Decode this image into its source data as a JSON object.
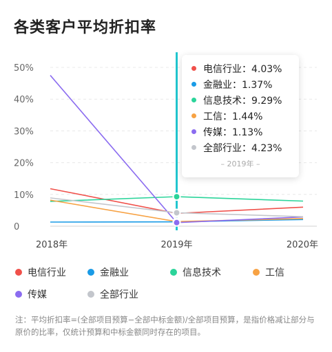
{
  "title": "各类客户平均折扣率",
  "chart_data": {
    "type": "line",
    "x": [
      "2018年",
      "2019年",
      "2020年"
    ],
    "ylim": [
      0,
      50
    ],
    "yticks": [
      "0",
      "10%",
      "20%",
      "30%",
      "40%",
      "50%"
    ],
    "ytick_values": [
      0,
      10,
      20,
      30,
      40,
      50
    ],
    "series": [
      {
        "name": "电信行业",
        "color": "#f0504a",
        "values": [
          11.8,
          4.03,
          6.0
        ]
      },
      {
        "name": "金融业",
        "color": "#1a9be6",
        "values": [
          1.3,
          1.37,
          2.1
        ]
      },
      {
        "name": "信息技术",
        "color": "#2bd49a",
        "values": [
          7.8,
          9.29,
          7.9
        ]
      },
      {
        "name": "工信",
        "color": "#f7a244",
        "values": [
          8.2,
          1.44,
          2.4
        ]
      },
      {
        "name": "传媒",
        "color": "#8b6cf0",
        "values": [
          47.5,
          1.13,
          2.9
        ]
      },
      {
        "name": "全部行业",
        "color": "#c3c6cc",
        "values": [
          8.9,
          4.23,
          3.0
        ]
      }
    ],
    "highlight_x": "2019年",
    "highlight_color": "#21c6cf",
    "grid": true
  },
  "tooltip": {
    "rows": [
      {
        "label": "电信行业：4.03%",
        "color": "#f0504a"
      },
      {
        "label": "金融业：1.37%",
        "color": "#1a9be6"
      },
      {
        "label": "信息技术：9.29%",
        "color": "#2bd49a"
      },
      {
        "label": "工信：1.44%",
        "color": "#f7a244"
      },
      {
        "label": "传媒：1.13%",
        "color": "#8b6cf0"
      },
      {
        "label": "全部行业：4.23%",
        "color": "#c3c6cc"
      }
    ],
    "footer": "– 2019年 –"
  },
  "legend": [
    {
      "label": "电信行业",
      "color": "#f0504a"
    },
    {
      "label": "金融业",
      "color": "#1a9be6"
    },
    {
      "label": "信息技术",
      "color": "#2bd49a"
    },
    {
      "label": "工信",
      "color": "#f7a244"
    },
    {
      "label": "传媒",
      "color": "#8b6cf0"
    },
    {
      "label": "全部行业",
      "color": "#c3c6cc"
    }
  ],
  "note": "注：平均折扣率=(全部项目预算−全部中标金额)/全部项目预算，是指价格减让部分与原价的比率，仅统计预算和中标金额同时存在的项目。"
}
